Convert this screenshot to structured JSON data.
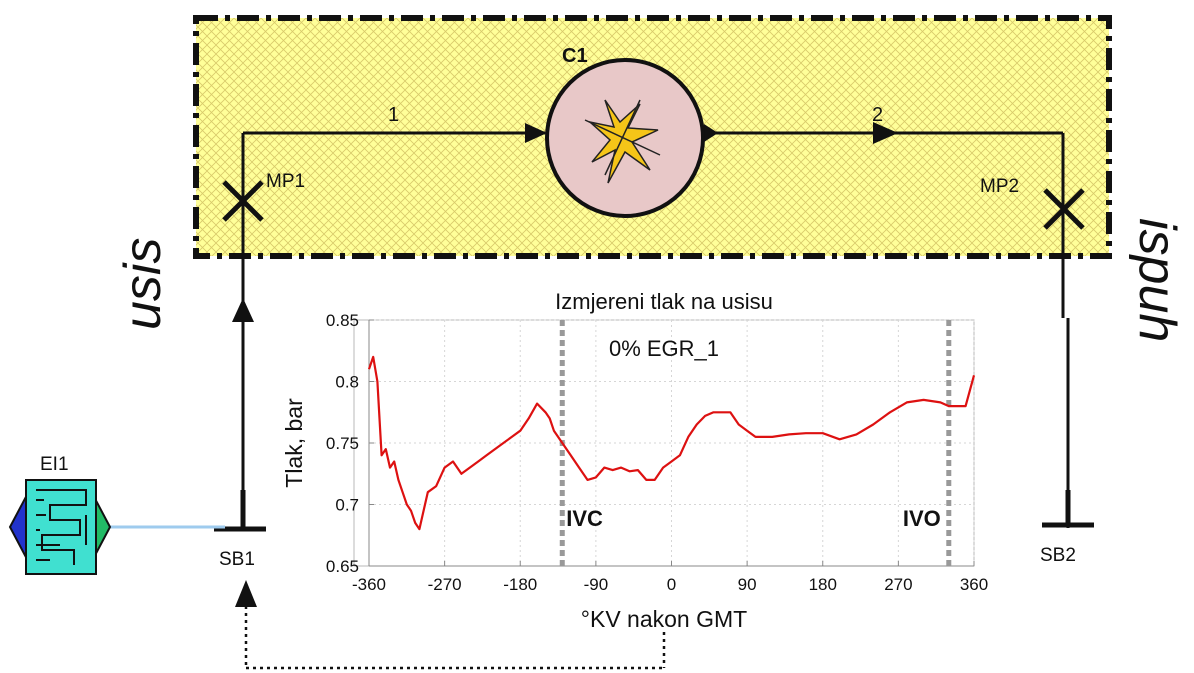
{
  "diagram": {
    "nodes": {
      "C1": "C1",
      "MP1": "MP1",
      "MP2": "MP2",
      "SB1": "SB1",
      "SB2": "SB2",
      "EI1": "EI1"
    },
    "pipes": {
      "pipe1": "1",
      "pipe2": "2"
    },
    "side_labels": {
      "left": "usis",
      "right": "ispuh"
    },
    "colors": {
      "system_fill": "#ffff99",
      "cylinder_fill": "#e8c8c8",
      "link_blue": "#9ecbee",
      "curve_red": "#dd1111"
    }
  },
  "chart_data": {
    "type": "line",
    "title": "Izmjereni tlak na usisu",
    "subtitle": "0% EGR_1",
    "xlabel": "°KV nakon GMT",
    "ylabel": "Tlak, bar",
    "xlim": [
      -360,
      360
    ],
    "ylim": [
      0.65,
      0.85
    ],
    "xticks": [
      -360,
      -270,
      -180,
      -90,
      0,
      90,
      180,
      270,
      360
    ],
    "yticks": [
      0.65,
      0.7,
      0.75,
      0.8,
      0.85
    ],
    "grid": true,
    "series": [
      {
        "x": [
          -360,
          -355,
          -350,
          -345,
          -340,
          -335,
          -330,
          -325,
          -320,
          -315,
          -310,
          -305,
          -300,
          -290,
          -280,
          -270,
          -260,
          -250,
          -240,
          -230,
          -220,
          -210,
          -200,
          -190,
          -180,
          -170,
          -160,
          -150,
          -145,
          -140,
          -130,
          -120,
          -110,
          -100,
          -90,
          -80,
          -70,
          -60,
          -50,
          -40,
          -30,
          -20,
          -10,
          0,
          10,
          20,
          30,
          40,
          50,
          60,
          70,
          80,
          90,
          100,
          120,
          140,
          160,
          180,
          200,
          220,
          240,
          260,
          280,
          300,
          320,
          330,
          340,
          350,
          360
        ],
        "y": [
          0.81,
          0.82,
          0.8,
          0.74,
          0.745,
          0.73,
          0.735,
          0.72,
          0.71,
          0.7,
          0.695,
          0.685,
          0.68,
          0.71,
          0.715,
          0.73,
          0.735,
          0.725,
          0.73,
          0.735,
          0.74,
          0.745,
          0.75,
          0.755,
          0.76,
          0.77,
          0.782,
          0.775,
          0.77,
          0.76,
          0.75,
          0.74,
          0.73,
          0.72,
          0.722,
          0.73,
          0.728,
          0.73,
          0.727,
          0.728,
          0.72,
          0.72,
          0.73,
          0.735,
          0.74,
          0.755,
          0.765,
          0.772,
          0.775,
          0.775,
          0.775,
          0.765,
          0.76,
          0.755,
          0.755,
          0.757,
          0.758,
          0.758,
          0.753,
          0.757,
          0.765,
          0.775,
          0.783,
          0.785,
          0.783,
          0.78,
          0.78,
          0.78,
          0.805
        ]
      }
    ],
    "annotations": [
      {
        "label": "IVC",
        "x": -130
      },
      {
        "label": "IVO",
        "x": 330
      }
    ]
  }
}
